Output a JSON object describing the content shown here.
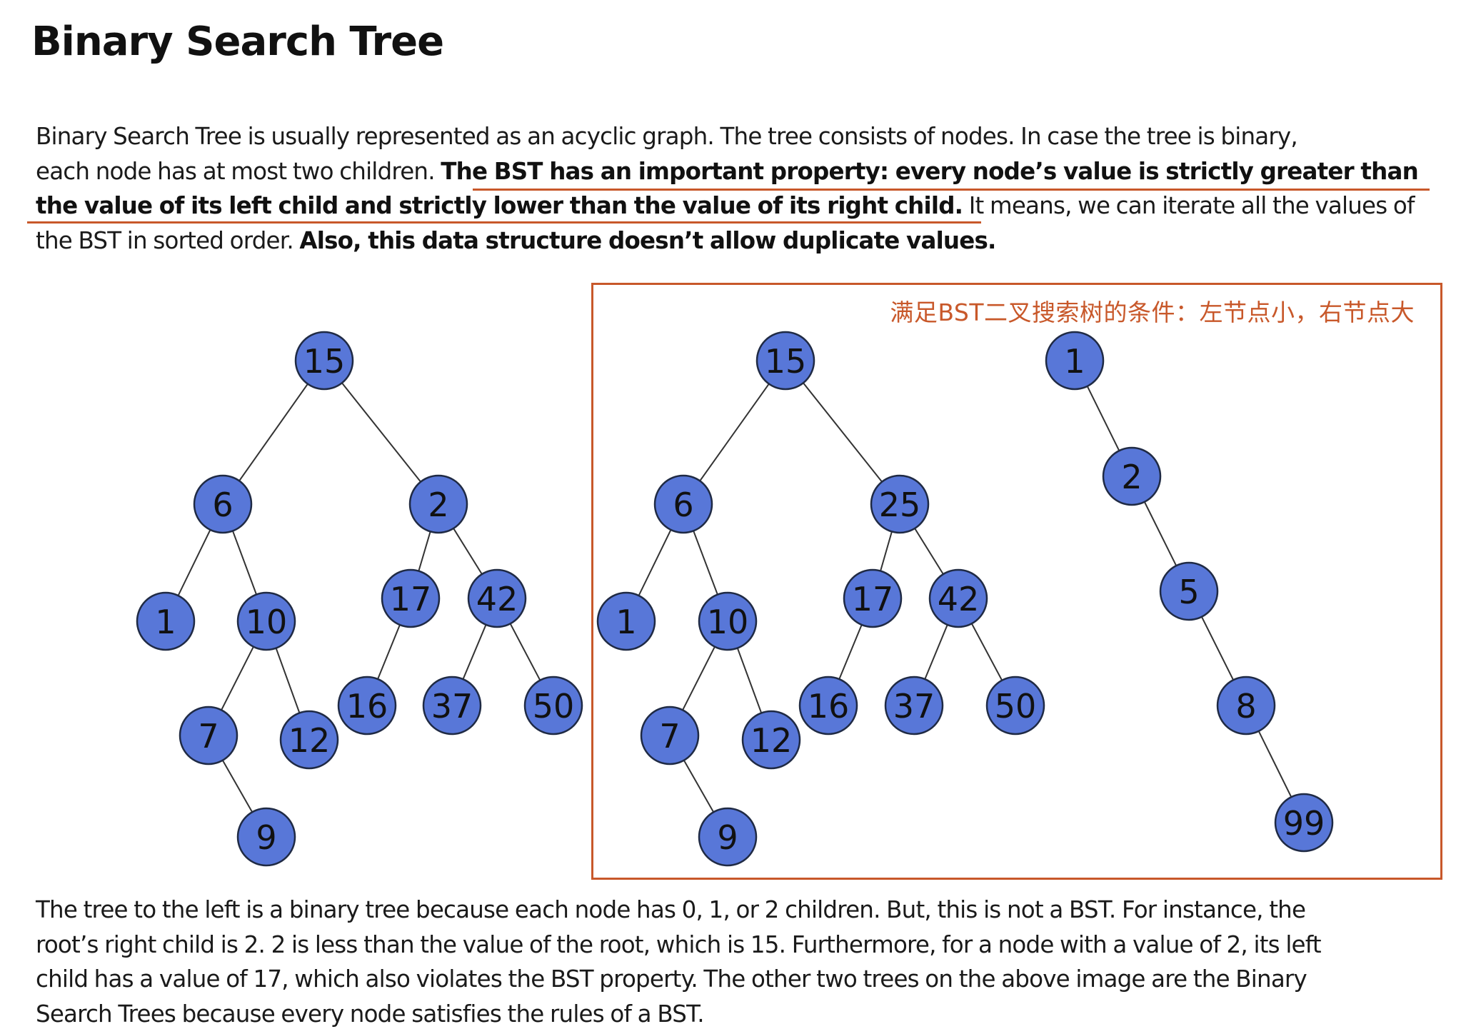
{
  "title": "Binary Search Tree",
  "intro": {
    "line1": "Binary Search Tree is usually represented as an acyclic graph. The tree consists of nodes. In case the tree is binary,",
    "line2_normal": "each node has at most two children. ",
    "line2_bold": "The BST has an important property: every node’s value is strictly greater than",
    "line3_bold": "the value of its left child and strictly lower than the value of its right child.",
    "line3_normal": " It means, we can iterate all the values of",
    "line4_normal": "the BST in sorted order. ",
    "line4_bold": "Also, this data structure doesn’t allow duplicate values."
  },
  "annotation": "满足BST二叉搜索树的条件：左节点小，右节点大",
  "annotation_color": "#c8582a",
  "node_color": "#5877d8",
  "trees": [
    {
      "name": "non-bst-tree",
      "nodes": [
        {
          "id": "a15",
          "label": "15"
        },
        {
          "id": "a6",
          "label": "6"
        },
        {
          "id": "a2",
          "label": "2"
        },
        {
          "id": "a1",
          "label": "1"
        },
        {
          "id": "a10",
          "label": "10"
        },
        {
          "id": "a17",
          "label": "17"
        },
        {
          "id": "a42",
          "label": "42"
        },
        {
          "id": "a7",
          "label": "7"
        },
        {
          "id": "a12",
          "label": "12"
        },
        {
          "id": "a16",
          "label": "16"
        },
        {
          "id": "a37",
          "label": "37"
        },
        {
          "id": "a50",
          "label": "50"
        },
        {
          "id": "a9",
          "label": "9"
        }
      ],
      "edges": [
        [
          "a15",
          "a6"
        ],
        [
          "a15",
          "a2"
        ],
        [
          "a6",
          "a1"
        ],
        [
          "a6",
          "a10"
        ],
        [
          "a10",
          "a7"
        ],
        [
          "a10",
          "a12"
        ],
        [
          "a7",
          "a9"
        ],
        [
          "a2",
          "a17"
        ],
        [
          "a2",
          "a42"
        ],
        [
          "a17",
          "a16"
        ],
        [
          "a42",
          "a37"
        ],
        [
          "a42",
          "a50"
        ]
      ]
    },
    {
      "name": "bst-tree-balanced",
      "nodes": [
        {
          "id": "b15",
          "label": "15"
        },
        {
          "id": "b6",
          "label": "6"
        },
        {
          "id": "b25",
          "label": "25"
        },
        {
          "id": "b1",
          "label": "1"
        },
        {
          "id": "b10",
          "label": "10"
        },
        {
          "id": "b17",
          "label": "17"
        },
        {
          "id": "b42",
          "label": "42"
        },
        {
          "id": "b7",
          "label": "7"
        },
        {
          "id": "b12",
          "label": "12"
        },
        {
          "id": "b16",
          "label": "16"
        },
        {
          "id": "b37",
          "label": "37"
        },
        {
          "id": "b50",
          "label": "50"
        },
        {
          "id": "b9",
          "label": "9"
        }
      ],
      "edges": [
        [
          "b15",
          "b6"
        ],
        [
          "b15",
          "b25"
        ],
        [
          "b6",
          "b1"
        ],
        [
          "b6",
          "b10"
        ],
        [
          "b10",
          "b7"
        ],
        [
          "b10",
          "b12"
        ],
        [
          "b7",
          "b9"
        ],
        [
          "b25",
          "b17"
        ],
        [
          "b25",
          "b42"
        ],
        [
          "b17",
          "b16"
        ],
        [
          "b42",
          "b37"
        ],
        [
          "b42",
          "b50"
        ]
      ]
    },
    {
      "name": "bst-tree-chain",
      "nodes": [
        {
          "id": "c1",
          "label": "1"
        },
        {
          "id": "c2",
          "label": "2"
        },
        {
          "id": "c5",
          "label": "5"
        },
        {
          "id": "c8",
          "label": "8"
        },
        {
          "id": "c99",
          "label": "99"
        }
      ],
      "edges": [
        [
          "c1",
          "c2"
        ],
        [
          "c2",
          "c5"
        ],
        [
          "c5",
          "c8"
        ],
        [
          "c8",
          "c99"
        ]
      ]
    }
  ],
  "explanation": {
    "line1": "The tree to the left is a binary tree because each node has 0, 1, or 2 children. But, this is not a BST. For instance, the",
    "line2": "root’s right child is 2. 2 is less than the value of the root, which is 15. Furthermore, for a node with a value of 2, its left",
    "line3": "child has a value of 17, which also violates the BST property. The other two trees on the above image are the Binary",
    "line4": "Search Trees because every node satisfies the rules of a BST."
  }
}
